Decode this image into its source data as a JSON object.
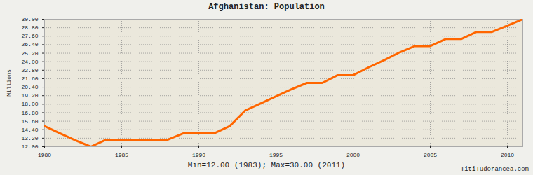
{
  "chart_data": {
    "type": "line",
    "title": "Afghanistan: Population",
    "y_label": "Millions",
    "annotations": [
      "Min=12.00 (1983); Max=30.00 (2011)",
      "TitiTudorancea.com"
    ],
    "x": [
      1980,
      1981,
      1982,
      1983,
      1984,
      1985,
      1986,
      1987,
      1988,
      1989,
      1990,
      1991,
      1992,
      1993,
      1994,
      1995,
      1996,
      1997,
      1998,
      1999,
      2000,
      2001,
      2002,
      2003,
      2004,
      2005,
      2006,
      2007,
      2008,
      2009,
      2010,
      2011
    ],
    "values": [
      14.9,
      13.9,
      12.9,
      12.0,
      13.0,
      13.0,
      13.0,
      13.0,
      13.0,
      13.9,
      13.9,
      13.9,
      14.9,
      17.1,
      18.1,
      19.1,
      20.1,
      21.0,
      21.0,
      22.1,
      22.1,
      23.2,
      24.2,
      25.3,
      26.2,
      26.2,
      27.2,
      27.2,
      28.2,
      28.2,
      29.1,
      30.0
    ],
    "color": "#ff6600",
    "xlim": [
      1980,
      2011
    ],
    "xticks": [
      1980,
      1985,
      1990,
      1995,
      2000,
      2005,
      2010
    ],
    "ylim": [
      12,
      30
    ],
    "yticks": [
      {
        "value": 12,
        "label": "12.00"
      },
      {
        "value": 13.2,
        "label": "13.20"
      },
      {
        "value": 14.4,
        "label": "14.40"
      },
      {
        "value": 15.6,
        "label": "15.60"
      },
      {
        "value": 16.8,
        "label": "16.80"
      },
      {
        "value": 18,
        "label": "18.00"
      },
      {
        "value": 19.2,
        "label": "19.20"
      },
      {
        "value": 20.4,
        "label": "20.40"
      },
      {
        "value": 21.6,
        "label": "21.60"
      },
      {
        "value": 22.8,
        "label": "22.80"
      },
      {
        "value": 24,
        "label": "24.00"
      },
      {
        "value": 25.2,
        "label": "25.20"
      },
      {
        "value": 26.4,
        "label": "26.40"
      },
      {
        "value": 27.6,
        "label": "27.60"
      },
      {
        "value": 28.8,
        "label": "28.80"
      },
      {
        "value": 30,
        "label": "30.00"
      }
    ],
    "grid": true
  }
}
